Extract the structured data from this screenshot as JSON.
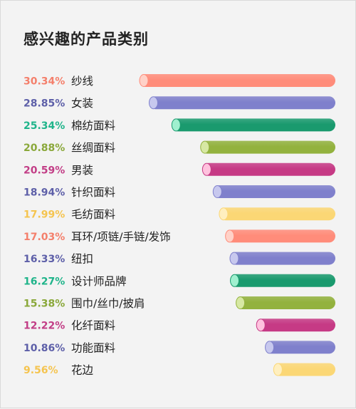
{
  "chart_data": {
    "type": "bar",
    "orientation": "horizontal",
    "title": "感兴趣的产品类别",
    "value_format": "percent",
    "categories": [
      "纱线",
      "女装",
      "棉纺面料",
      "丝绸面料",
      "男装",
      "针织面料",
      "毛纺面料",
      "耳环/项链/手链/发饰",
      "纽扣",
      "设计师品牌",
      "围巾/丝巾/披肩",
      "化纤面料",
      "功能面料",
      "花边"
    ],
    "values": [
      30.34,
      28.85,
      25.34,
      20.88,
      20.59,
      18.94,
      17.99,
      17.03,
      16.33,
      16.27,
      15.38,
      12.22,
      10.86,
      9.56
    ],
    "value_labels": [
      "30.34%",
      "28.85%",
      "25.34%",
      "20.88%",
      "20.59%",
      "18.94%",
      "17.99%",
      "17.03%",
      "16.33%",
      "16.27%",
      "15.38%",
      "12.22%",
      "10.86%",
      "9.56%"
    ],
    "colors": [
      "#f47f6b",
      "#5d5fa8",
      "#1fb48a",
      "#8aa83a",
      "#c23d86",
      "#5d5fa8",
      "#f5c44f",
      "#f47f6b",
      "#5d5fa8",
      "#1fb48a",
      "#8aa83a",
      "#c23d86",
      "#5d5fa8",
      "#f5c44f"
    ],
    "bar_colors": [
      "#ff8c7a",
      "#7f80cc",
      "#1a9a6e",
      "#93b23e",
      "#c63a85",
      "#7f80cc",
      "#fbd775",
      "#ff8c7a",
      "#7f80cc",
      "#1a9a6e",
      "#93b23e",
      "#c63a85",
      "#7f80cc",
      "#fbd775"
    ],
    "cap_colors": [
      "#ffd1c7",
      "#c7c8ee",
      "#9ff0cf",
      "#d7e8a3",
      "#ffc2de",
      "#c7c8ee",
      "#ffefbf",
      "#ffd1c7",
      "#c7c8ee",
      "#9ff0cf",
      "#d7e8a3",
      "#ffc2de",
      "#c7c8ee",
      "#ffefbf"
    ],
    "xlim": [
      0,
      30.34
    ],
    "grid": false,
    "legend": "none"
  }
}
